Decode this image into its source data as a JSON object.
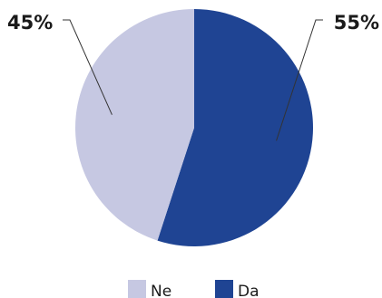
{
  "chart_data": {
    "type": "pie",
    "slices": [
      {
        "label": "Da",
        "value": 55,
        "display": "55%",
        "color": "#1f4493"
      },
      {
        "label": "Ne",
        "value": 45,
        "display": "45%",
        "color": "#c6c8e2"
      }
    ],
    "legend": {
      "placement": "bottom",
      "order": [
        "Ne",
        "Da"
      ]
    }
  }
}
